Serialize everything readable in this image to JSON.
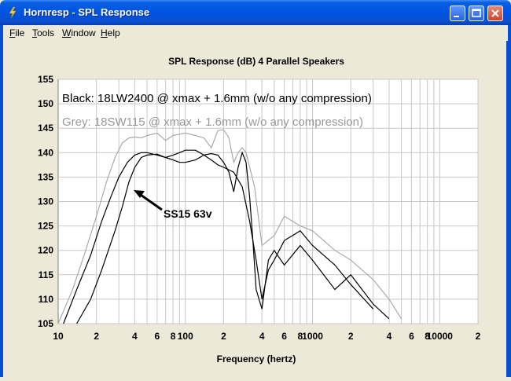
{
  "window": {
    "title": "Hornresp - SPL Response"
  },
  "menu": [
    {
      "mnemonic": "F",
      "rest": "ile"
    },
    {
      "mnemonic": "T",
      "rest": "ools"
    },
    {
      "mnemonic": "W",
      "rest": "indow"
    },
    {
      "mnemonic": "H",
      "rest": "elp"
    }
  ],
  "colors": {
    "titlebar": "#0054E3",
    "chart_bg": "#FFFFFF",
    "grid": "#C8C8C8",
    "black_series": "#000000",
    "grey_series": "#AAAAAA"
  },
  "chart_data": {
    "type": "line",
    "title": "SPL Response (dB)   4 Parallel Speakers",
    "xlabel": "Frequency (hertz)",
    "ylabel": "",
    "x_scale": "log",
    "xlim": [
      10,
      20000
    ],
    "ylim": [
      105,
      155
    ],
    "y_ticks": [
      "155",
      "150",
      "145",
      "140",
      "135",
      "130",
      "125",
      "120",
      "115",
      "110",
      "105"
    ],
    "x_tick_labels": [
      {
        "value": 10,
        "label": "10"
      },
      {
        "value": 20,
        "label": "2"
      },
      {
        "value": 40,
        "label": "4"
      },
      {
        "value": 60,
        "label": "6"
      },
      {
        "value": 80,
        "label": "8"
      },
      {
        "value": 100,
        "label": "100"
      },
      {
        "value": 200,
        "label": "2"
      },
      {
        "value": 400,
        "label": "4"
      },
      {
        "value": 600,
        "label": "6"
      },
      {
        "value": 800,
        "label": "8"
      },
      {
        "value": 1000,
        "label": "1000"
      },
      {
        "value": 2000,
        "label": "2"
      },
      {
        "value": 4000,
        "label": "4"
      },
      {
        "value": 6000,
        "label": "6"
      },
      {
        "value": 8000,
        "label": "8"
      },
      {
        "value": 10000,
        "label": "10000"
      },
      {
        "value": 20000,
        "label": "2"
      }
    ],
    "grid": true,
    "annotations": [
      {
        "text": "Black: 18LW2400 @ xmax + 1.6mm (w/o any compression)",
        "color": "#000000"
      },
      {
        "text": "Grey: 18SW115 @ xmax + 1.6mm (w/o any compression)",
        "color": "#999999"
      },
      {
        "text": "SS15 63v",
        "color": "#000000"
      }
    ],
    "series": [
      {
        "color": "#000000",
        "x": [
          14,
          18,
          22,
          28,
          32,
          36,
          40,
          45,
          50,
          60,
          70,
          80,
          90,
          100,
          120,
          140,
          160,
          180,
          200,
          220,
          240,
          260,
          280,
          300,
          320,
          340,
          360,
          400,
          450,
          500,
          600,
          800,
          1000,
          1500,
          2000,
          3000,
          4000
        ],
        "y": [
          105,
          110,
          116,
          124,
          129,
          134,
          137,
          139,
          139.5,
          139.7,
          139,
          139.5,
          140,
          140.5,
          140.5,
          139.5,
          139.8,
          139.5,
          138,
          136,
          132,
          137,
          140,
          138,
          131,
          122,
          112,
          108,
          118,
          120,
          117,
          121,
          118,
          112,
          115,
          109,
          106
        ]
      },
      {
        "color": "#000000",
        "x": [
          11,
          14,
          18,
          22,
          26,
          30,
          35,
          40,
          45,
          50,
          60,
          70,
          80,
          90,
          100,
          120,
          140,
          160,
          180,
          200,
          240,
          280,
          320,
          360,
          400,
          450,
          500,
          600,
          800,
          1000,
          1500,
          2000,
          3000
        ],
        "y": [
          105,
          112,
          119,
          126,
          131,
          135,
          138,
          139.5,
          140,
          140,
          139.5,
          139,
          138.5,
          138,
          138,
          138.5,
          139.5,
          138.5,
          137.5,
          137,
          136,
          133,
          126,
          118,
          110,
          116,
          118,
          122,
          124,
          121,
          117,
          113,
          108
        ]
      },
      {
        "color": "#AAAAAA",
        "x": [
          10,
          13,
          16,
          20,
          24,
          28,
          32,
          36,
          40,
          45,
          50,
          60,
          70,
          80,
          100,
          120,
          140,
          160,
          180,
          200,
          220,
          240,
          260,
          280,
          300,
          350,
          400,
          500,
          600,
          800,
          1000,
          1500,
          2000,
          3000,
          4000,
          5000
        ],
        "y": [
          105,
          112,
          119,
          127,
          134,
          139,
          142,
          143,
          143.2,
          143,
          143.5,
          144,
          142.5,
          143.5,
          144,
          143.5,
          143,
          141,
          144.5,
          144.7,
          143,
          138,
          140,
          141,
          140,
          133,
          121,
          123,
          127,
          125,
          124,
          120,
          118,
          114,
          110,
          106
        ]
      }
    ]
  }
}
